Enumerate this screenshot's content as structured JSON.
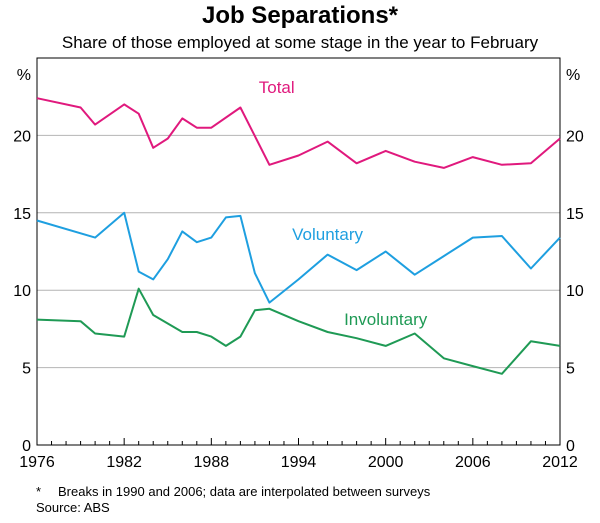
{
  "chart_data": {
    "type": "line",
    "title": "Job Separations*",
    "subtitle": "Share of those employed at some stage in the year to February",
    "ylabel_left": "%",
    "ylabel_right": "%",
    "ylim": [
      0,
      25
    ],
    "yticks": [
      0,
      5,
      10,
      15,
      20
    ],
    "xlim": [
      1976,
      2012
    ],
    "xticks": [
      1976,
      1982,
      1988,
      1994,
      2000,
      2006,
      2012
    ],
    "series": [
      {
        "name": "Total",
        "color": "#e0197d",
        "x": [
          1976,
          1979,
          1980,
          1982,
          1983,
          1984,
          1985,
          1986,
          1987,
          1988,
          1990,
          1992,
          1994,
          1996,
          1998,
          2000,
          2002,
          2004,
          2006,
          2008,
          2010,
          2012
        ],
        "values": [
          22.4,
          21.8,
          20.7,
          22.0,
          21.4,
          19.2,
          19.8,
          21.1,
          20.5,
          20.5,
          21.8,
          18.1,
          18.7,
          19.6,
          18.2,
          19.0,
          18.3,
          17.9,
          18.6,
          18.1,
          18.2,
          19.8
        ]
      },
      {
        "name": "Voluntary",
        "color": "#1e9fe0",
        "x": [
          1976,
          1980,
          1982,
          1983,
          1984,
          1985,
          1986,
          1987,
          1988,
          1989,
          1990,
          1991,
          1992,
          1994,
          1996,
          1998,
          2000,
          2002,
          2004,
          2006,
          2008,
          2010,
          2012
        ],
        "values": [
          14.5,
          13.4,
          15.0,
          11.2,
          10.7,
          12.0,
          13.8,
          13.1,
          13.4,
          14.7,
          14.8,
          11.1,
          9.2,
          10.7,
          12.3,
          11.3,
          12.5,
          11.0,
          12.2,
          13.4,
          13.5,
          11.4,
          13.4
        ]
      },
      {
        "name": "Involuntary",
        "color": "#1f9a55",
        "x": [
          1976,
          1979,
          1980,
          1982,
          1983,
          1984,
          1986,
          1987,
          1988,
          1989,
          1990,
          1991,
          1992,
          1994,
          1996,
          1998,
          2000,
          2002,
          2004,
          2006,
          2008,
          2010,
          2012
        ],
        "values": [
          8.1,
          8.0,
          7.2,
          7.0,
          10.1,
          8.4,
          7.3,
          7.3,
          7.0,
          6.4,
          7.0,
          8.7,
          8.8,
          8.0,
          7.3,
          6.9,
          6.4,
          7.2,
          5.6,
          5.1,
          4.6,
          6.7,
          6.4
        ]
      }
    ],
    "footnote": "Breaks in 1990 and 2006; data are interpolated between surveys",
    "footnote_marker": "*",
    "source": "Source: ABS"
  }
}
